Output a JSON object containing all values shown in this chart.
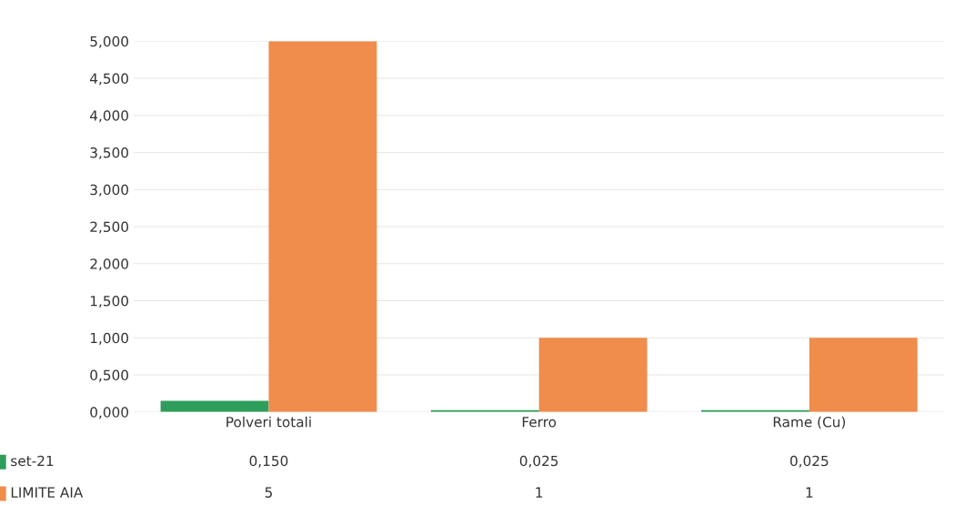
{
  "chart_data": {
    "type": "bar",
    "categories": [
      "Polveri totali",
      "Ferro",
      "Rame (Cu)"
    ],
    "series": [
      {
        "name": "set-21",
        "color": "#2f9e5c",
        "values": [
          0.15,
          0.025,
          0.025
        ],
        "value_labels": [
          "0,150",
          "0,025",
          "0,025"
        ]
      },
      {
        "name": "LIMITE AIA",
        "color": "#f08c4c",
        "values": [
          5,
          1,
          1
        ],
        "value_labels": [
          "5",
          "1",
          "1"
        ]
      }
    ],
    "ylim": [
      0,
      5
    ],
    "yticks": [
      {
        "value": 0,
        "label": "0,000"
      },
      {
        "value": 0.5,
        "label": "0,500"
      },
      {
        "value": 1,
        "label": "1,000"
      },
      {
        "value": 1.5,
        "label": "1,500"
      },
      {
        "value": 2,
        "label": "2,000"
      },
      {
        "value": 2.5,
        "label": "2,500"
      },
      {
        "value": 3,
        "label": "3,000"
      },
      {
        "value": 3.5,
        "label": "3,500"
      },
      {
        "value": 4,
        "label": "4,000"
      },
      {
        "value": 4.5,
        "label": "4,500"
      },
      {
        "value": 5,
        "label": "5,000"
      }
    ],
    "grid": "y",
    "legend": "bottom left"
  }
}
